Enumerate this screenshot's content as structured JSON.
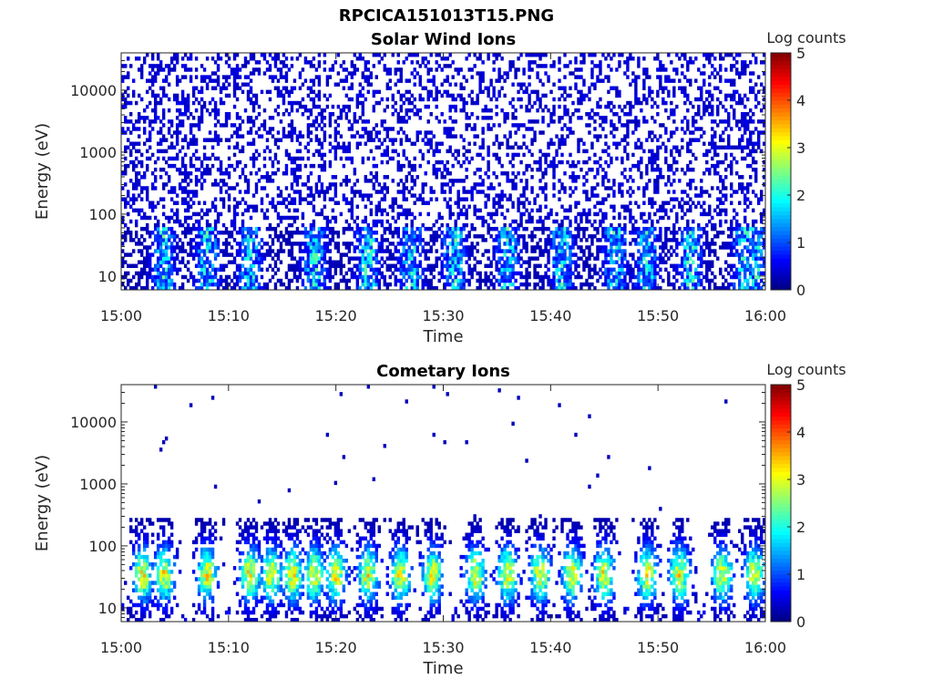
{
  "figure": {
    "title": "RPCICA151013T15.PNG"
  },
  "chart_data": [
    {
      "type": "heatmap",
      "title": "Solar Wind Ions",
      "xlabel": "Time",
      "ylabel": "Energy (eV)",
      "x_range": [
        "15:00",
        "16:00"
      ],
      "x_ticks": [
        "15:00",
        "15:10",
        "15:20",
        "15:30",
        "15:40",
        "15:50",
        "16:00"
      ],
      "y_scale": "log",
      "y_range": [
        6,
        40000
      ],
      "y_ticks": [
        10,
        100,
        1000,
        10000
      ],
      "y_tick_labels": [
        "10",
        "100",
        "1000",
        "10000"
      ],
      "colorbar": {
        "label": "Log counts",
        "range": [
          0,
          5
        ],
        "ticks": [
          "0",
          "1",
          "2",
          "3",
          "4",
          "5"
        ],
        "colormap": "jet"
      },
      "features": {
        "background_fill_fraction": 0.32,
        "background_log_counts": 0.25,
        "low_energy_band_eV": [
          6,
          60
        ],
        "burst_times": [
          "15:04",
          "15:08",
          "15:12",
          "15:18",
          "15:23",
          "15:27",
          "15:31",
          "15:36",
          "15:41",
          "15:46",
          "15:49",
          "15:53",
          "15:58",
          "15:59"
        ],
        "burst_peak_log_counts": 1.9
      }
    },
    {
      "type": "heatmap",
      "title": "Cometary Ions",
      "xlabel": "Time",
      "ylabel": "Energy (eV)",
      "x_range": [
        "15:00",
        "16:00"
      ],
      "x_ticks": [
        "15:00",
        "15:10",
        "15:20",
        "15:30",
        "15:40",
        "15:50",
        "16:00"
      ],
      "y_scale": "log",
      "y_range": [
        6,
        40000
      ],
      "y_ticks": [
        10,
        100,
        1000,
        10000
      ],
      "y_tick_labels": [
        "10",
        "100",
        "1000",
        "10000"
      ],
      "colorbar": {
        "label": "Log counts",
        "range": [
          0,
          5
        ],
        "ticks": [
          "0",
          "1",
          "2",
          "3",
          "4",
          "5"
        ],
        "colormap": "jet"
      },
      "features": {
        "background_fill_fraction": 0.004,
        "background_log_counts": 0.3,
        "burst_times": [
          "15:02",
          "15:04",
          "15:08",
          "15:12",
          "15:14",
          "15:16",
          "15:18",
          "15:20",
          "15:23",
          "15:26",
          "15:29",
          "15:33",
          "15:36",
          "15:39",
          "15:42",
          "15:45",
          "15:49",
          "15:52",
          "15:56",
          "15:59"
        ],
        "burst_energy_eV": [
          8,
          300
        ],
        "burst_peak_energy_eV": 35,
        "burst_peak_log_counts": 2.9
      }
    }
  ]
}
